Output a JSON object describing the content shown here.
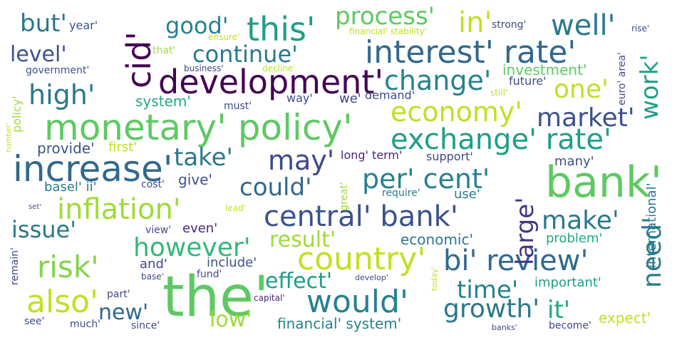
{
  "words": [
    {
      "text": "the'",
      "color": "#5ec962"
    },
    {
      "text": "bank'",
      "color": "#5ec962"
    },
    {
      "text": "monetary' policy'",
      "color": "#5ec962"
    },
    {
      "text": "increase'",
      "color": "#31688e"
    },
    {
      "text": "development'",
      "color": "#440154"
    },
    {
      "text": "interest' rate'",
      "color": "#31688e"
    },
    {
      "text": "exchange' rate'",
      "color": "#1f9e89"
    },
    {
      "text": "central' bank'",
      "color": "#3b528b"
    },
    {
      "text": "country'",
      "color": "#c2df23"
    },
    {
      "text": "would'",
      "color": "#26828e"
    },
    {
      "text": "bi' review'",
      "color": "#31688e"
    },
    {
      "text": "economy'",
      "color": "#c2df23"
    },
    {
      "text": "this'",
      "color": "#1f9e89"
    },
    {
      "text": "cid'",
      "color": "#440154"
    },
    {
      "text": "inflation'",
      "color": "#a0da39"
    },
    {
      "text": "also'",
      "color": "#c2df23"
    },
    {
      "text": "risk'",
      "color": "#84d44b"
    },
    {
      "text": "change'",
      "color": "#26828e"
    },
    {
      "text": "per' cent'",
      "color": "#26828e"
    },
    {
      "text": "process'",
      "color": "#5ec962"
    },
    {
      "text": "in'",
      "color": "#c2df23"
    },
    {
      "text": "well'",
      "color": "#2a788e"
    },
    {
      "text": "high'",
      "color": "#2a788e"
    },
    {
      "text": "however'",
      "color": "#35b779"
    },
    {
      "text": "growth'",
      "color": "#2a788e"
    },
    {
      "text": "need'",
      "color": "#2a788e"
    },
    {
      "text": "may'",
      "color": "#3e4989"
    },
    {
      "text": "could'",
      "color": "#31688e"
    },
    {
      "text": "market'",
      "color": "#3b528b"
    },
    {
      "text": "make'",
      "color": "#2a788e"
    },
    {
      "text": "take'",
      "color": "#2a788e"
    },
    {
      "text": "time'",
      "color": "#26828e"
    },
    {
      "text": "effect'",
      "color": "#1f9e89"
    },
    {
      "text": "work'",
      "color": "#1f9e89"
    },
    {
      "text": "one'",
      "color": "#c2df23"
    },
    {
      "text": "large'",
      "color": "#46337e"
    },
    {
      "text": "result'",
      "color": "#a0da39"
    },
    {
      "text": "it'",
      "color": "#22a884"
    },
    {
      "text": "but'",
      "color": "#2a788e"
    },
    {
      "text": "good'",
      "color": "#26828e"
    },
    {
      "text": "continue'",
      "color": "#2a788e"
    },
    {
      "text": "issue'",
      "color": "#2a788e"
    },
    {
      "text": "new'",
      "color": "#31688e"
    },
    {
      "text": "low'",
      "color": "#a0da39"
    },
    {
      "text": "level'",
      "color": "#3b528b"
    },
    {
      "text": "system'",
      "color": "#22a884"
    },
    {
      "text": "provide'",
      "color": "#3b528b"
    },
    {
      "text": "first'",
      "color": "#bddf26"
    },
    {
      "text": "give'",
      "color": "#3b528b"
    },
    {
      "text": "basel' ii'",
      "color": "#2a788e"
    },
    {
      "text": "financial' system'",
      "color": "#26828e"
    },
    {
      "text": "economic'",
      "color": "#2a788e"
    },
    {
      "text": "problem'",
      "color": "#22a884"
    },
    {
      "text": "important'",
      "color": "#1f9e89"
    },
    {
      "text": "expect'",
      "color": "#c2df23"
    },
    {
      "text": "investment'",
      "color": "#5ec962"
    },
    {
      "text": "future'",
      "color": "#3e4989"
    },
    {
      "text": "many'",
      "color": "#3b528b"
    },
    {
      "text": "international'",
      "color": "#2a788e"
    },
    {
      "text": "include'",
      "color": "#3b528b"
    },
    {
      "text": "and'",
      "color": "#3e4989"
    },
    {
      "text": "even'",
      "color": "#482878"
    },
    {
      "text": "use'",
      "color": "#2a788e"
    },
    {
      "text": "year'",
      "color": "#3b528b"
    },
    {
      "text": "government'",
      "color": "#3b528b"
    },
    {
      "text": "policy'",
      "color": "#a0da39"
    },
    {
      "text": "strong'",
      "color": "#3e4989"
    },
    {
      "text": "euro' area'",
      "color": "#3e4989"
    },
    {
      "text": "rise'",
      "color": "#3e4989"
    },
    {
      "text": "we'",
      "color": "#3e4989"
    },
    {
      "text": "demand'",
      "color": "#3e4989"
    },
    {
      "text": "way'",
      "color": "#3e4989"
    },
    {
      "text": "must'",
      "color": "#3e4989"
    },
    {
      "text": "long' term'",
      "color": "#482878"
    },
    {
      "text": "support'",
      "color": "#3e4989"
    },
    {
      "text": "require'",
      "color": "#2a788e"
    },
    {
      "text": "cost'",
      "color": "#3e4989"
    },
    {
      "text": "see'",
      "color": "#3e4989"
    },
    {
      "text": "much'",
      "color": "#3e4989"
    },
    {
      "text": "since'",
      "color": "#3e4989"
    },
    {
      "text": "part'",
      "color": "#3e4989"
    },
    {
      "text": "view'",
      "color": "#3e4989"
    },
    {
      "text": "fund'",
      "color": "#3e4989"
    },
    {
      "text": "become'",
      "color": "#3e4989"
    },
    {
      "text": "remain'",
      "color": "#3e4989"
    },
    {
      "text": "that'",
      "color": "#a0da39"
    },
    {
      "text": "decline'",
      "color": "#c2df23"
    },
    {
      "text": "business'",
      "color": "#3e4989"
    },
    {
      "text": "ensure'",
      "color": "#c2df23"
    },
    {
      "text": "financial' stability'",
      "color": "#c2df23"
    },
    {
      "text": "still'",
      "color": "#c2df23"
    },
    {
      "text": "great'",
      "color": "#a0da39"
    },
    {
      "text": "number'",
      "color": "#c2df23"
    },
    {
      "text": "set'",
      "color": "#3e4989"
    },
    {
      "text": "lead'",
      "color": "#c2df23"
    },
    {
      "text": "base'",
      "color": "#3e4989"
    },
    {
      "text": "develop'",
      "color": "#3e4989"
    },
    {
      "text": "capital'",
      "color": "#482878"
    },
    {
      "text": "today'",
      "color": "#c2df23"
    },
    {
      "text": "banks'",
      "color": "#3e4989"
    }
  ]
}
